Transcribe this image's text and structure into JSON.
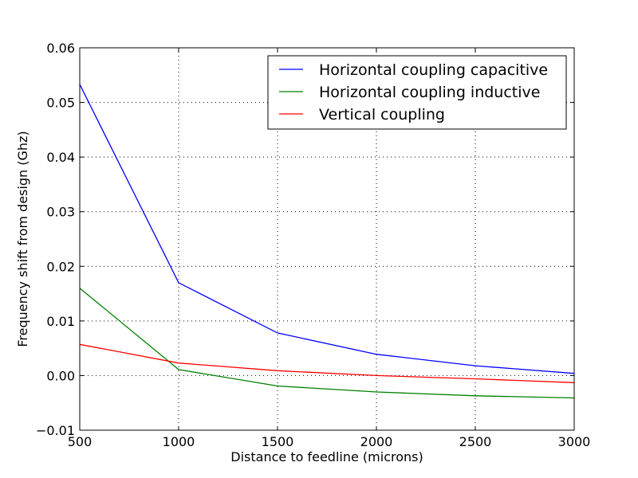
{
  "chart_data": {
    "type": "line",
    "title": "",
    "xlabel": "Distance to feedline (microns)",
    "ylabel": "Frequency shift from design (Ghz)",
    "xlim": [
      500,
      3000
    ],
    "ylim": [
      -0.01,
      0.06
    ],
    "xticks": [
      500,
      1000,
      1500,
      2000,
      2500,
      3000
    ],
    "xtick_labels": [
      "500",
      "1000",
      "1500",
      "2000",
      "2500",
      "3000"
    ],
    "yticks": [
      -0.01,
      0.0,
      0.01,
      0.02,
      0.03,
      0.04,
      0.05,
      0.06
    ],
    "ytick_labels": [
      "−0.01",
      "0.00",
      "0.01",
      "0.02",
      "0.03",
      "0.04",
      "0.05",
      "0.06"
    ],
    "grid": true,
    "legend_position": "top-right",
    "x": [
      500,
      1000,
      1500,
      2000,
      2500,
      3000
    ],
    "series": [
      {
        "name": "Horizontal coupling capacitive",
        "color": "#0000ff",
        "values": [
          0.0533,
          0.017,
          0.0078,
          0.0039,
          0.0018,
          0.0004
        ]
      },
      {
        "name": "Horizontal coupling inductive",
        "color": "#008000",
        "values": [
          0.016,
          0.0011,
          -0.0019,
          -0.003,
          -0.0037,
          -0.0041
        ]
      },
      {
        "name": "Vertical coupling",
        "color": "#ff0000",
        "values": [
          0.0057,
          0.0023,
          0.0009,
          0.0,
          -0.0006,
          -0.0013
        ]
      }
    ]
  }
}
